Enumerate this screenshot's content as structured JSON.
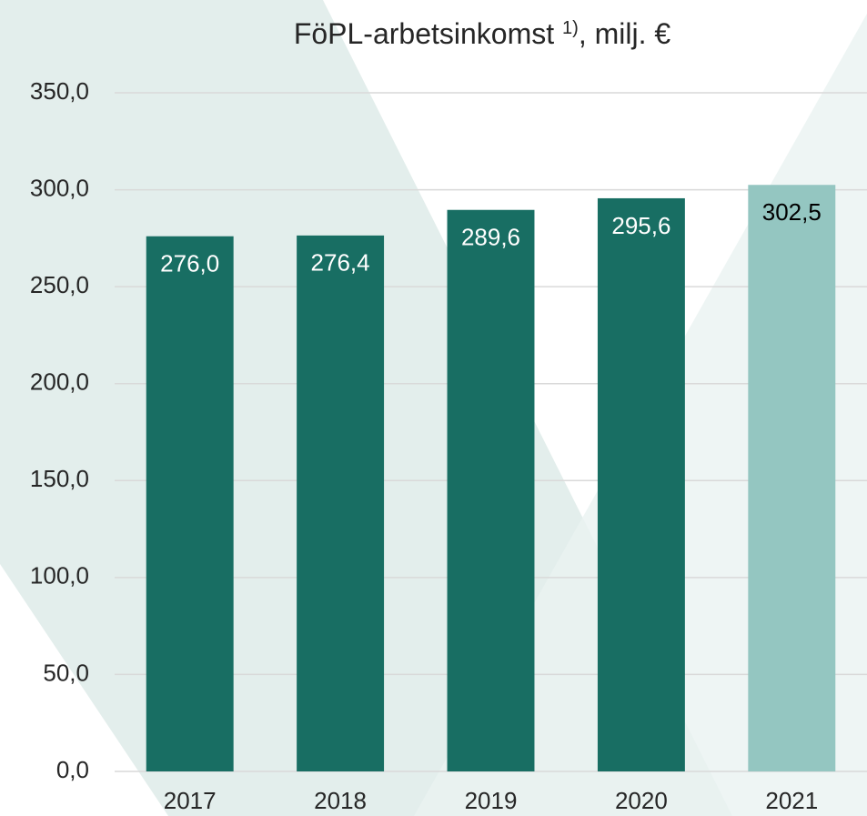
{
  "chart_data": {
    "type": "bar",
    "title": "FöPL-arbetsinkomst ",
    "title_footnote": "1)",
    "title_unit": ", milj. €",
    "categories": [
      "2017",
      "2018",
      "2019",
      "2020",
      "2021"
    ],
    "values": [
      276.0,
      276.4,
      289.6,
      295.6,
      302.5
    ],
    "value_labels": [
      "276,0",
      "276,4",
      "289,6",
      "295,6",
      "302,5"
    ],
    "colors": [
      "#186e63",
      "#186e63",
      "#186e63",
      "#186e63",
      "#94c6c1"
    ],
    "value_label_colors": [
      "#ffffff",
      "#ffffff",
      "#ffffff",
      "#ffffff",
      "#000000"
    ],
    "ylim": [
      0,
      350
    ],
    "yticks": [
      {
        "value": 0,
        "label": "0,0"
      },
      {
        "value": 50,
        "label": "50,0"
      },
      {
        "value": 100,
        "label": "100,0"
      },
      {
        "value": 150,
        "label": "150,0"
      },
      {
        "value": 200,
        "label": "200,0"
      },
      {
        "value": 250,
        "label": "250,0"
      },
      {
        "value": 300,
        "label": "300,0"
      },
      {
        "value": 350,
        "label": "350,0"
      }
    ],
    "grid": true
  }
}
